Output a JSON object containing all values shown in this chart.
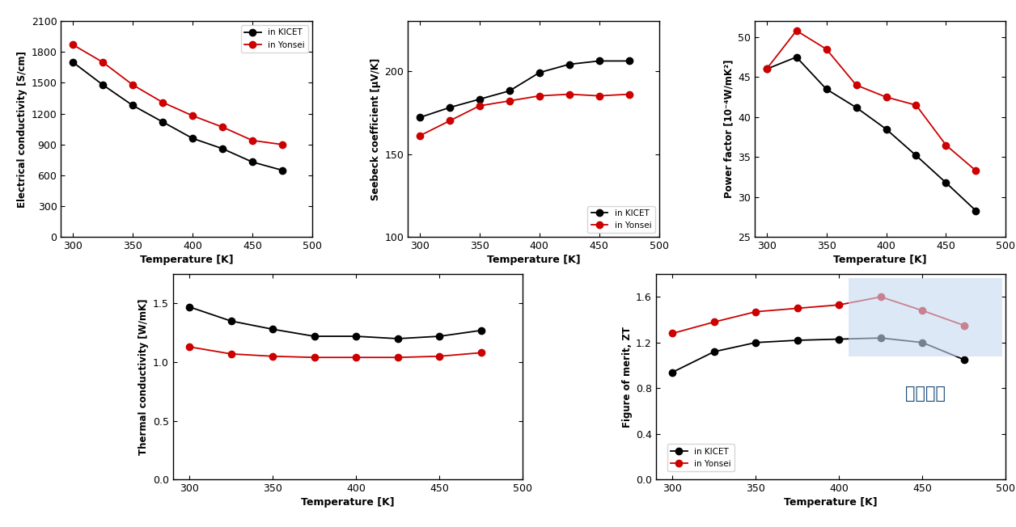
{
  "temp": [
    300,
    325,
    350,
    375,
    400,
    425,
    450,
    475
  ],
  "elec_kicet": [
    1700,
    1480,
    1280,
    1120,
    960,
    860,
    730,
    650
  ],
  "elec_yonsei": [
    1870,
    1700,
    1480,
    1310,
    1180,
    1070,
    940,
    900
  ],
  "seebeck_kicet": [
    172,
    178,
    183,
    188,
    199,
    204,
    206,
    206
  ],
  "seebeck_yonsei": [
    161,
    170,
    179,
    182,
    185,
    186,
    185,
    186
  ],
  "pf_kicet": [
    46.0,
    47.5,
    43.5,
    41.2,
    38.5,
    35.2,
    31.8,
    28.3
  ],
  "pf_yonsei": [
    46.0,
    50.8,
    48.5,
    44.0,
    42.5,
    41.5,
    36.5,
    33.3
  ],
  "tc_kicet": [
    1.47,
    1.35,
    1.28,
    1.22,
    1.22,
    1.2,
    1.22,
    1.27
  ],
  "tc_yonsei": [
    1.13,
    1.07,
    1.05,
    1.04,
    1.04,
    1.04,
    1.05,
    1.08
  ],
  "zt_kicet": [
    0.94,
    1.12,
    1.2,
    1.22,
    1.23,
    1.24,
    1.2,
    1.05
  ],
  "zt_yonsei": [
    1.28,
    1.38,
    1.47,
    1.5,
    1.53,
    1.6,
    1.48,
    1.35
  ],
  "color_kicet": "#000000",
  "color_yonsei": "#cc0000",
  "marker": "o",
  "markersize": 6,
  "linewidth": 1.3,
  "elec_ylabel": "Electrical conductivity [S/cm]",
  "elec_ylim": [
    0,
    2100
  ],
  "elec_yticks": [
    0,
    300,
    600,
    900,
    1200,
    1500,
    1800,
    2100
  ],
  "seebeck_ylabel": "Seebeck coefficient [μV/K]",
  "seebeck_ylim": [
    100,
    230
  ],
  "seebeck_yticks": [
    100,
    150,
    200
  ],
  "pf_ylabel": "Power factor [10⁻⁴W/mK²]",
  "pf_ylim": [
    25,
    52
  ],
  "pf_yticks": [
    25,
    30,
    35,
    40,
    45,
    50
  ],
  "tc_ylabel": "Thermal conductivity [W/mK]",
  "tc_ylim": [
    0.0,
    1.75
  ],
  "tc_yticks": [
    0.0,
    0.5,
    1.0,
    1.5
  ],
  "zt_ylabel": "Figure of merit, ZT",
  "zt_ylim": [
    0.0,
    1.8
  ],
  "zt_yticks": [
    0.0,
    0.4,
    0.8,
    1.2,
    1.6
  ],
  "xlabel": "Temperature [K]",
  "xlim": [
    290,
    495
  ],
  "xticks": [
    300,
    350,
    400,
    450,
    500
  ],
  "legend_kicet": "in KICET",
  "legend_yonsei": "in Yonsei",
  "box_text": "최종목표",
  "box_color": "#c5d9f1"
}
